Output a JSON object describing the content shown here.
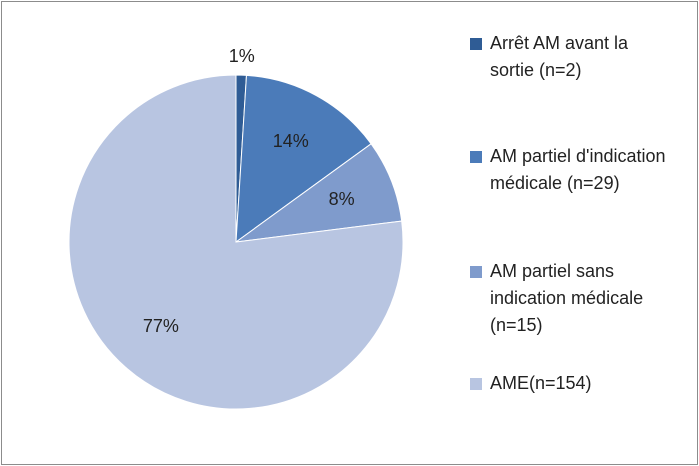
{
  "chart_data": {
    "type": "pie",
    "categories": [
      "Arrêt AM avant la sortie (n=2)",
      "AM partiel d'indication médicale (n=29)",
      "AM partiel sans indication médicale (n=15)",
      "AME(n=154)"
    ],
    "values": [
      1,
      14,
      8,
      77
    ],
    "value_labels": [
      "1%",
      "14%",
      "8%",
      "77%"
    ],
    "colors": [
      "#2f5c95",
      "#4b7bb9",
      "#7f9bcc",
      "#b8c5e1"
    ],
    "legend": "right"
  }
}
